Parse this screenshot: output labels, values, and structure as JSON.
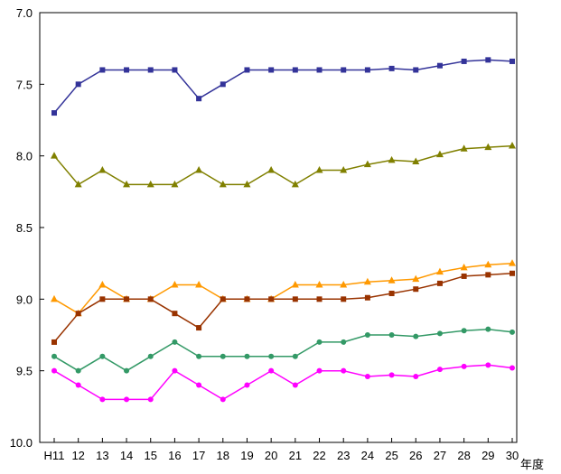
{
  "chart_data": {
    "type": "line",
    "x_unit_label": "年度",
    "categories": [
      "H11",
      "12",
      "13",
      "14",
      "15",
      "16",
      "17",
      "18",
      "19",
      "20",
      "21",
      "22",
      "23",
      "24",
      "25",
      "26",
      "27",
      "28",
      "29",
      "30"
    ],
    "y_axis": {
      "min": 7.0,
      "max": 10.0,
      "reversed": true,
      "ticks": [
        "7.0",
        "7.5",
        "8.0",
        "8.5",
        "9.0",
        "9.5",
        "10.0"
      ]
    },
    "grid": false,
    "series": [
      {
        "color": "#333399",
        "marker": "square",
        "values": [
          7.7,
          7.5,
          7.4,
          7.4,
          7.4,
          7.4,
          7.6,
          7.5,
          7.4,
          7.4,
          7.4,
          7.4,
          7.4,
          7.4,
          7.39,
          7.4,
          7.37,
          7.34,
          7.33,
          7.34
        ]
      },
      {
        "color": "#808000",
        "marker": "triangle",
        "values": [
          8.0,
          8.2,
          8.1,
          8.2,
          8.2,
          8.2,
          8.1,
          8.2,
          8.2,
          8.1,
          8.2,
          8.1,
          8.1,
          8.06,
          8.03,
          8.04,
          7.99,
          7.95,
          7.94,
          7.93
        ]
      },
      {
        "color": "#FF9900",
        "marker": "triangle",
        "values": [
          9.0,
          9.1,
          8.9,
          9.0,
          9.0,
          8.9,
          8.9,
          9.0,
          9.0,
          9.0,
          8.9,
          8.9,
          8.9,
          8.88,
          8.87,
          8.86,
          8.81,
          8.78,
          8.76,
          8.75
        ]
      },
      {
        "color": "#993300",
        "marker": "square",
        "values": [
          9.3,
          9.1,
          9.0,
          9.0,
          9.0,
          9.1,
          9.2,
          9.0,
          9.0,
          9.0,
          9.0,
          9.0,
          9.0,
          8.99,
          8.96,
          8.93,
          8.89,
          8.84,
          8.83,
          8.82
        ]
      },
      {
        "color": "#339966",
        "marker": "circle",
        "values": [
          9.4,
          9.5,
          9.4,
          9.5,
          9.4,
          9.3,
          9.4,
          9.4,
          9.4,
          9.4,
          9.4,
          9.3,
          9.3,
          9.25,
          9.25,
          9.26,
          9.24,
          9.22,
          9.21,
          9.23
        ]
      },
      {
        "color": "#FF00FF",
        "marker": "circle",
        "values": [
          9.5,
          9.6,
          9.7,
          9.7,
          9.7,
          9.5,
          9.6,
          9.7,
          9.6,
          9.5,
          9.6,
          9.5,
          9.5,
          9.54,
          9.53,
          9.54,
          9.49,
          9.47,
          9.46,
          9.48
        ]
      }
    ]
  }
}
